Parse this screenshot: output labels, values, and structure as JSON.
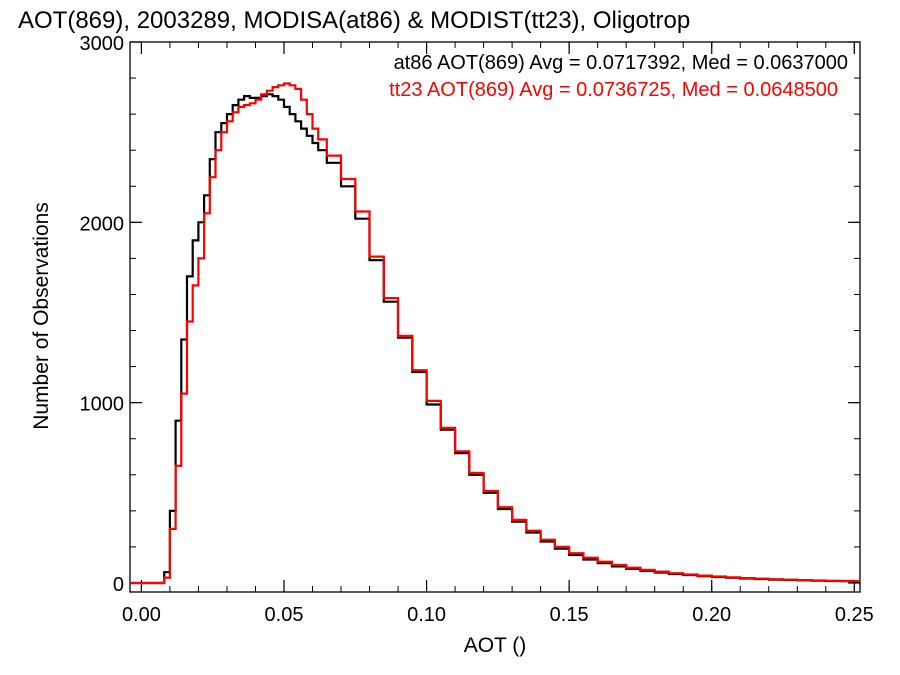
{
  "chart_data": {
    "type": "line",
    "title": "AOT(869), 2003289, MODISA(at86) & MODIST(tt23), Oligotrop",
    "xlabel": "AOT ()",
    "ylabel": "Number of Observations",
    "xlim": [
      -0.004,
      0.252
    ],
    "ylim": [
      -50,
      3000
    ],
    "xticks": [
      0.0,
      0.05,
      0.1,
      0.15,
      0.2,
      0.25
    ],
    "xtick_labels": [
      "0.00",
      "0.05",
      "0.10",
      "0.15",
      "0.20",
      "0.25"
    ],
    "yticks": [
      0,
      1000,
      2000,
      3000
    ],
    "ytick_labels": [
      "0",
      "1000",
      "2000",
      "3000"
    ],
    "step": true,
    "legend_position": "top-right",
    "series": [
      {
        "name": "at86",
        "legend": "at86 AOT(869) Avg = 0.0717392, Med = 0.0637000",
        "color": "#000000",
        "x": [
          0.0,
          0.006,
          0.008,
          0.01,
          0.012,
          0.014,
          0.016,
          0.018,
          0.02,
          0.022,
          0.024,
          0.026,
          0.028,
          0.03,
          0.032,
          0.034,
          0.036,
          0.038,
          0.04,
          0.042,
          0.044,
          0.046,
          0.048,
          0.05,
          0.052,
          0.054,
          0.056,
          0.058,
          0.06,
          0.062,
          0.065,
          0.07,
          0.075,
          0.08,
          0.085,
          0.09,
          0.095,
          0.1,
          0.105,
          0.11,
          0.115,
          0.12,
          0.125,
          0.13,
          0.135,
          0.14,
          0.145,
          0.15,
          0.155,
          0.16,
          0.165,
          0.17,
          0.175,
          0.18,
          0.185,
          0.19,
          0.195,
          0.2,
          0.205,
          0.21,
          0.215,
          0.22,
          0.225,
          0.23,
          0.235,
          0.24,
          0.245,
          0.25
        ],
        "y": [
          0,
          0,
          60,
          400,
          900,
          1350,
          1700,
          1900,
          2000,
          2150,
          2350,
          2500,
          2550,
          2600,
          2650,
          2680,
          2700,
          2690,
          2690,
          2700,
          2710,
          2700,
          2680,
          2640,
          2600,
          2560,
          2520,
          2480,
          2440,
          2400,
          2330,
          2200,
          2020,
          1790,
          1560,
          1360,
          1170,
          990,
          850,
          720,
          600,
          500,
          410,
          340,
          280,
          230,
          190,
          155,
          130,
          110,
          92,
          78,
          67,
          58,
          50,
          44,
          38,
          33,
          29,
          25,
          22,
          19,
          17,
          15,
          13,
          11,
          10,
          9
        ]
      },
      {
        "name": "tt23",
        "legend": "tt23 AOT(869) Avg = 0.0736725, Med = 0.0648500",
        "color": "#ff0000",
        "x": [
          0.0,
          0.006,
          0.008,
          0.01,
          0.012,
          0.014,
          0.016,
          0.018,
          0.02,
          0.022,
          0.024,
          0.026,
          0.028,
          0.03,
          0.032,
          0.034,
          0.036,
          0.038,
          0.04,
          0.042,
          0.044,
          0.046,
          0.048,
          0.05,
          0.052,
          0.054,
          0.056,
          0.058,
          0.06,
          0.062,
          0.065,
          0.07,
          0.075,
          0.08,
          0.085,
          0.09,
          0.095,
          0.1,
          0.105,
          0.11,
          0.115,
          0.12,
          0.125,
          0.13,
          0.135,
          0.14,
          0.145,
          0.15,
          0.155,
          0.16,
          0.165,
          0.17,
          0.175,
          0.18,
          0.185,
          0.19,
          0.195,
          0.2,
          0.205,
          0.21,
          0.215,
          0.22,
          0.225,
          0.23,
          0.235,
          0.24,
          0.245,
          0.25
        ],
        "y": [
          0,
          0,
          30,
          300,
          650,
          1050,
          1450,
          1650,
          1800,
          2050,
          2250,
          2400,
          2500,
          2560,
          2610,
          2640,
          2650,
          2660,
          2680,
          2710,
          2730,
          2750,
          2760,
          2770,
          2760,
          2740,
          2680,
          2600,
          2520,
          2460,
          2370,
          2240,
          2060,
          1810,
          1580,
          1370,
          1180,
          1010,
          860,
          730,
          610,
          510,
          420,
          350,
          290,
          240,
          200,
          165,
          140,
          118,
          100,
          85,
          73,
          63,
          54,
          47,
          41,
          36,
          31,
          27,
          24,
          21,
          18,
          16,
          14,
          12,
          11,
          10
        ]
      }
    ]
  }
}
